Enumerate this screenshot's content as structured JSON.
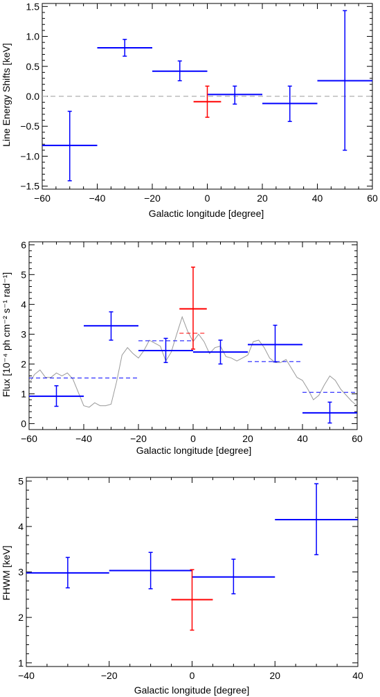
{
  "chart_data": [
    {
      "type": "scatter",
      "title": "",
      "xlabel": "Galactic longitude [degree]",
      "ylabel": "Line Energy Shifts [keV]",
      "xlim": [
        -60,
        60
      ],
      "ylim": [
        -1.55,
        1.55
      ],
      "xticks": [
        -60,
        -40,
        -20,
        0,
        20,
        40,
        60
      ],
      "xtick_labels": [
        "−60",
        "−40",
        "−20",
        "0",
        "20",
        "40",
        "60"
      ],
      "yticks": [
        -1.5,
        -1.0,
        -0.5,
        0.0,
        0.5,
        1.0,
        1.5
      ],
      "ytick_labels": [
        "−1.5",
        "−1.0",
        "−0.5",
        "0.0",
        "0.5",
        "1.0",
        "1.5"
      ],
      "reference_line": {
        "y": 0,
        "style": "dashed",
        "color": "#999999"
      },
      "series": [
        {
          "color": "#0000ff",
          "points": [
            {
              "x": -50,
              "xlo": -60,
              "xhi": -40,
              "y": -0.82,
              "ylo": -1.41,
              "yhi": -0.25
            },
            {
              "x": -30,
              "xlo": -40,
              "xhi": -20,
              "y": 0.81,
              "ylo": 0.67,
              "yhi": 0.95
            },
            {
              "x": -10,
              "xlo": -20,
              "xhi": 0,
              "y": 0.42,
              "ylo": 0.26,
              "yhi": 0.59
            },
            {
              "x": 10,
              "xlo": 0,
              "xhi": 20,
              "y": 0.03,
              "ylo": -0.13,
              "yhi": 0.17
            },
            {
              "x": 30,
              "xlo": 20,
              "xhi": 40,
              "y": -0.12,
              "ylo": -0.42,
              "yhi": 0.17
            },
            {
              "x": 50,
              "xlo": 40,
              "xhi": 60,
              "y": 0.26,
              "ylo": -0.9,
              "yhi": 1.43
            }
          ]
        },
        {
          "color": "#ff0000",
          "points": [
            {
              "x": 0,
              "xlo": -5,
              "xhi": 5,
              "y": -0.09,
              "ylo": -0.35,
              "yhi": 0.17
            }
          ]
        }
      ]
    },
    {
      "type": "scatter",
      "title": "",
      "xlabel": "Galactic longitude [degree]",
      "ylabel": "Flux [10⁻⁴ ph cm⁻² s⁻¹ rad⁻¹]",
      "xlim": [
        -60,
        60
      ],
      "ylim": [
        -0.2,
        6.1
      ],
      "xticks": [
        -60,
        -40,
        -20,
        0,
        20,
        40,
        60
      ],
      "xtick_labels": [
        "−60",
        "−40",
        "−20",
        "0",
        "20",
        "40",
        "60"
      ],
      "yticks": [
        0,
        1,
        2,
        3,
        4,
        5,
        6
      ],
      "ytick_labels": [
        "0",
        "1",
        "2",
        "3",
        "4",
        "5",
        "6"
      ],
      "series": [
        {
          "color": "#0000ff",
          "points": [
            {
              "x": -50,
              "xlo": -60,
              "xhi": -40,
              "y": 0.92,
              "ylo": 0.58,
              "yhi": 1.27
            },
            {
              "x": -30,
              "xlo": -40,
              "xhi": -20,
              "y": 3.28,
              "ylo": 2.8,
              "yhi": 3.75
            },
            {
              "x": -10,
              "xlo": -20,
              "xhi": 0,
              "y": 2.45,
              "ylo": 2.05,
              "yhi": 2.86
            },
            {
              "x": 10,
              "xlo": 0,
              "xhi": 20,
              "y": 2.4,
              "ylo": 2.0,
              "yhi": 2.8
            },
            {
              "x": 30,
              "xlo": 20,
              "xhi": 40,
              "y": 2.65,
              "ylo": 2.07,
              "yhi": 3.3
            },
            {
              "x": 50,
              "xlo": 40,
              "xhi": 60,
              "y": 0.36,
              "ylo": 0.02,
              "yhi": 0.72
            }
          ]
        },
        {
          "color": "#ff0000",
          "points": [
            {
              "x": 0,
              "xlo": -5,
              "xhi": 5,
              "y": 3.85,
              "ylo": 2.5,
              "yhi": 5.25
            }
          ]
        }
      ],
      "dashed_steps": [
        {
          "color": "#0000ff",
          "xlo": -60,
          "xhi": -20,
          "y": 1.53
        },
        {
          "color": "#0000ff",
          "xlo": -20,
          "xhi": 0,
          "y": 2.78
        },
        {
          "color": "#ff0000",
          "xlo": -5,
          "xhi": 5,
          "y": 3.03
        },
        {
          "color": "#0000ff",
          "xlo": 20,
          "xhi": 40,
          "y": 2.08
        },
        {
          "color": "#0000ff",
          "xlo": 40,
          "xhi": 60,
          "y": 1.05
        }
      ],
      "curve": {
        "color": "#999999",
        "x": [
          -60,
          -58,
          -56,
          -54,
          -52,
          -50,
          -48,
          -46,
          -44,
          -42,
          -40,
          -38,
          -36,
          -34,
          -32,
          -30,
          -28,
          -26,
          -24,
          -22,
          -20,
          -18,
          -16,
          -14,
          -12,
          -10,
          -8,
          -6,
          -4,
          -2,
          0,
          2,
          4,
          6,
          8,
          10,
          12,
          14,
          16,
          18,
          20,
          22,
          24,
          26,
          28,
          30,
          32,
          34,
          36,
          38,
          40,
          42,
          44,
          46,
          48,
          50,
          52,
          54,
          56,
          58,
          60
        ],
        "y": [
          1.35,
          1.65,
          1.8,
          1.55,
          1.55,
          1.7,
          1.6,
          1.7,
          1.5,
          1.05,
          0.6,
          0.55,
          0.7,
          0.6,
          0.6,
          0.65,
          1.4,
          2.3,
          2.55,
          2.35,
          2.2,
          2.45,
          2.8,
          2.7,
          2.6,
          2.1,
          2.4,
          3.0,
          3.58,
          3.1,
          2.75,
          3.0,
          2.75,
          2.35,
          2.55,
          2.6,
          2.25,
          2.2,
          2.1,
          2.2,
          2.3,
          2.75,
          2.8,
          2.55,
          2.2,
          2.05,
          2.05,
          2.15,
          1.85,
          1.55,
          1.45,
          1.15,
          0.8,
          0.95,
          1.3,
          1.6,
          1.45,
          1.15,
          0.95,
          0.75,
          0.6
        ]
      }
    },
    {
      "type": "scatter",
      "title": "",
      "xlabel": "Galactic longitude [degree]",
      "ylabel": "FHWM [keV]",
      "xlim": [
        -40,
        40
      ],
      "ylim": [
        0.92,
        5.08
      ],
      "xticks": [
        -40,
        -20,
        0,
        20,
        40
      ],
      "xtick_labels": [
        "−40",
        "−20",
        "0",
        "20",
        "40"
      ],
      "yticks": [
        1,
        2,
        3,
        4,
        5
      ],
      "ytick_labels": [
        "1",
        "2",
        "3",
        "4",
        "5"
      ],
      "series": [
        {
          "color": "#0000ff",
          "points": [
            {
              "x": -30,
              "xlo": -40,
              "xhi": -20,
              "y": 2.98,
              "ylo": 2.65,
              "yhi": 3.32
            },
            {
              "x": -10,
              "xlo": -20,
              "xhi": 0,
              "y": 3.03,
              "ylo": 2.63,
              "yhi": 3.43
            },
            {
              "x": 10,
              "xlo": 0,
              "xhi": 20,
              "y": 2.89,
              "ylo": 2.52,
              "yhi": 3.28
            },
            {
              "x": 30,
              "xlo": 20,
              "xhi": 40,
              "y": 4.15,
              "ylo": 3.38,
              "yhi": 4.94
            }
          ]
        },
        {
          "color": "#ff0000",
          "points": [
            {
              "x": 0,
              "xlo": -5,
              "xhi": 5,
              "y": 2.39,
              "ylo": 1.72,
              "yhi": 3.05
            }
          ]
        }
      ]
    }
  ]
}
